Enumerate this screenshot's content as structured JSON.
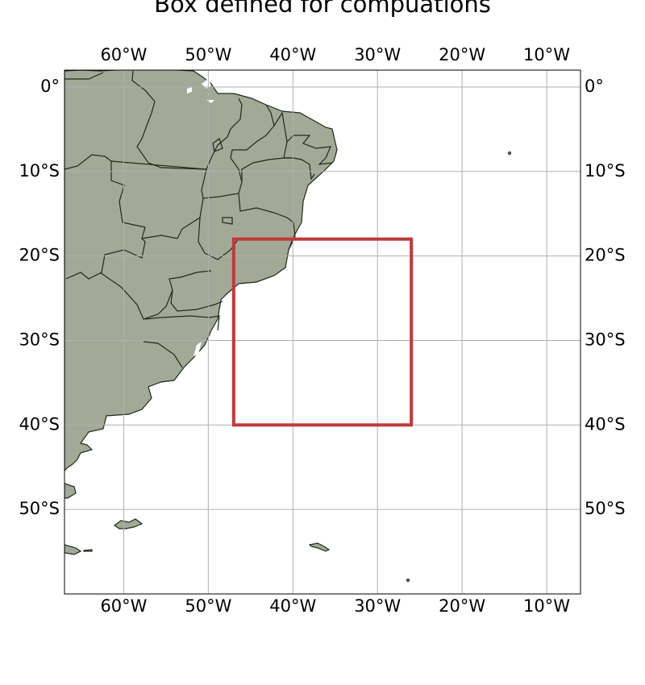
{
  "title": "Box defined for compuations",
  "extent": {
    "lon": [
      -67,
      -6
    ],
    "lat": [
      -60,
      2
    ]
  },
  "lon_ticks": [
    {
      "value": -60,
      "label": "60°W"
    },
    {
      "value": -50,
      "label": "50°W"
    },
    {
      "value": -40,
      "label": "40°W"
    },
    {
      "value": -30,
      "label": "30°W"
    },
    {
      "value": -20,
      "label": "20°W"
    },
    {
      "value": -10,
      "label": "10°W"
    }
  ],
  "lat_ticks": [
    {
      "value": 0,
      "label": "0°"
    },
    {
      "value": -10,
      "label": "10°S"
    },
    {
      "value": -20,
      "label": "20°S"
    },
    {
      "value": -30,
      "label": "30°S"
    },
    {
      "value": -40,
      "label": "40°S"
    },
    {
      "value": -50,
      "label": "50°S"
    }
  ],
  "box": {
    "lon_min": -47,
    "lon_max": -26,
    "lat_min": -40,
    "lat_max": -18,
    "color": "#c0393b"
  },
  "colors": {
    "land": "#a3a997",
    "border": "#1e2a17",
    "grid": "#b0b0b0",
    "frame": "#000000"
  },
  "grid": true
}
